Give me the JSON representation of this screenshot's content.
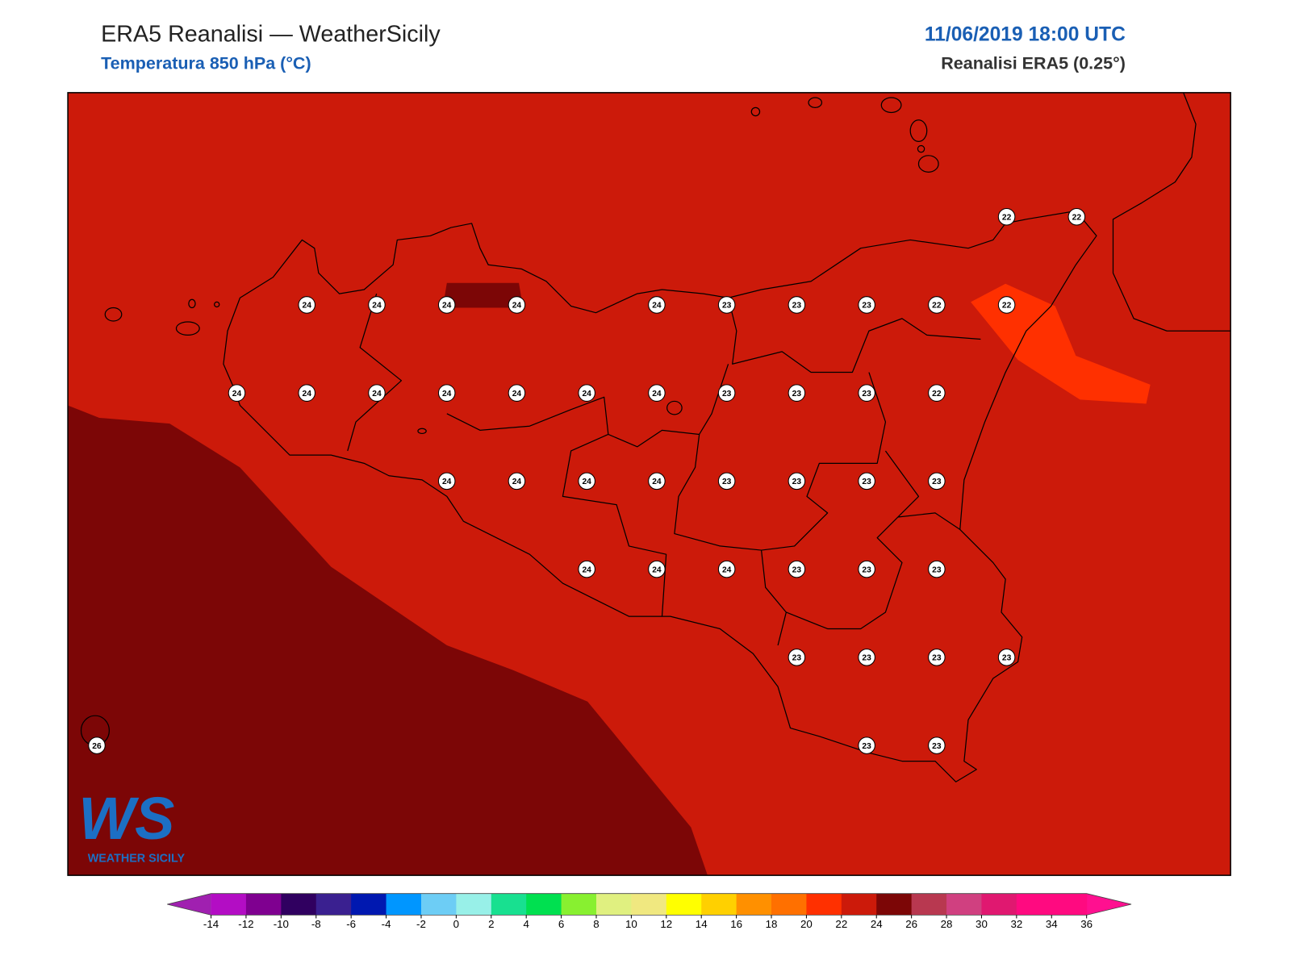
{
  "header": {
    "title": "ERA5 Reanalisi — WeatherSicily",
    "subtitle": "Temperatura 850 hPa (°C)",
    "datetime": "11/06/2019 18:00 UTC",
    "source": "Reanalisi ERA5 (0.25°)"
  },
  "map": {
    "point_values": [
      [
        null,
        null,
        null,
        null,
        null,
        null,
        null,
        null,
        null,
        null,
        null,
        null,
        null,
        22,
        22
      ],
      [
        null,
        null,
        null,
        24,
        24,
        24,
        24,
        null,
        24,
        23,
        23,
        23,
        22,
        22,
        null
      ],
      [
        null,
        null,
        24,
        24,
        24,
        24,
        24,
        24,
        24,
        23,
        23,
        23,
        22,
        null,
        null
      ],
      [
        null,
        null,
        null,
        null,
        null,
        24,
        24,
        24,
        24,
        23,
        23,
        23,
        23,
        null,
        null
      ],
      [
        null,
        null,
        null,
        null,
        null,
        null,
        null,
        24,
        24,
        24,
        23,
        23,
        23,
        null,
        null
      ],
      [
        null,
        null,
        null,
        null,
        null,
        null,
        null,
        null,
        null,
        null,
        23,
        23,
        23,
        23,
        null
      ],
      [
        26,
        null,
        null,
        null,
        null,
        null,
        null,
        null,
        null,
        null,
        null,
        23,
        23,
        null,
        null
      ]
    ]
  },
  "colorbar": {
    "ticks": [
      -14,
      -12,
      -10,
      -8,
      -6,
      -4,
      -2,
      0,
      2,
      4,
      6,
      8,
      10,
      12,
      14,
      16,
      18,
      20,
      22,
      24,
      26,
      28,
      30,
      32,
      34,
      36
    ],
    "colors": [
      "#b30dc4",
      "#7f0090",
      "#300060",
      "#3a2090",
      "#0018b0",
      "#0096ff",
      "#6dcdf5",
      "#98f0e8",
      "#18e090",
      "#00e050",
      "#88f030",
      "#e0f080",
      "#f0e880",
      "#ffff00",
      "#ffd000",
      "#ff9000",
      "#ff7000",
      "#ff3000",
      "#cc1a0a",
      "#7c0606",
      "#b83850",
      "#d04080",
      "#e01870",
      "#ff0a80",
      "#ff0a80"
    ],
    "under_color": "#a020b0",
    "over_color": "#ff1090"
  },
  "logo": {
    "mark": "WS",
    "text": "WEATHER SICILY"
  }
}
